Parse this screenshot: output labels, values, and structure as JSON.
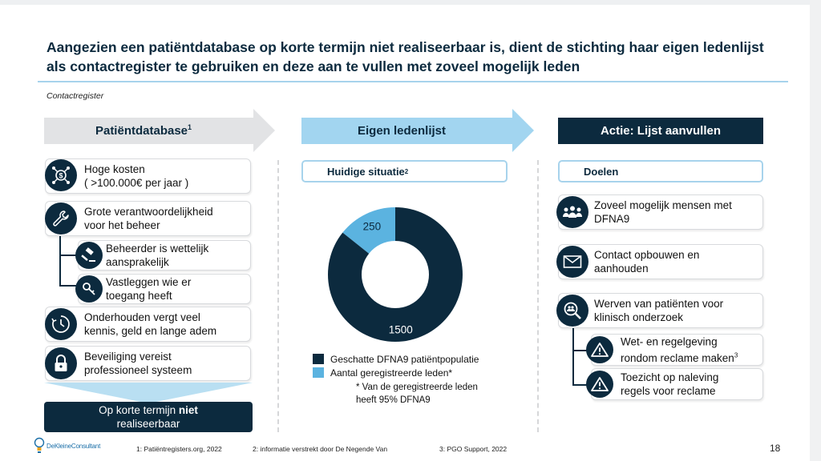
{
  "slide": {
    "title": "Aangezien een patiëntdatabase op korte termijn niet realiseerbaar is, dient de stichting haar eigen ledenlijst als contactregister te gebruiken en deze aan te vullen met zoveel mogelijk leden",
    "subtitle": "Contactregister",
    "page_number": "18"
  },
  "columns": {
    "left": {
      "header": "Patiëntdatabase",
      "header_sup": "1",
      "items": [
        {
          "line1": "Hoge kosten",
          "line2": "( >100.000€ per jaar )",
          "icon": "money-network-icon"
        },
        {
          "line1": "Grote verantwoordelijkheid",
          "line2": "voor het beheer",
          "icon": "wrench-icon"
        },
        {
          "line1": "Beheerder is wettelijk",
          "line2": "aansprakelijk",
          "icon": "gavel-icon"
        },
        {
          "line1": "Vastleggen wie er",
          "line2": "toegang heeft",
          "icon": "key-icon"
        },
        {
          "line1": "Onderhouden vergt veel",
          "line2": "kennis, geld en lange adem",
          "icon": "clock-icon"
        },
        {
          "line1": "Beveiliging vereist",
          "line2": "professioneel systeem",
          "icon": "lock-icon"
        }
      ],
      "conclusion_line1_pre": "Op korte termijn ",
      "conclusion_line1_bold": "niet",
      "conclusion_line2": "realiseerbaar"
    },
    "middle": {
      "header": "Eigen ledenlijst",
      "pill": "Huidige situatie",
      "pill_sup": "2",
      "legend": [
        {
          "label": "Geschatte DFNA9 patiëntpopulatie",
          "color": "#0c2a3e"
        },
        {
          "label": "Aantal geregistreerde leden*",
          "color": "#5bb3e0"
        }
      ],
      "footnote_line1": "* Van de geregistreerde leden",
      "footnote_line2": "heeft 95% DFNA9"
    },
    "right": {
      "header": "Actie: Lijst aanvullen",
      "pill": "Doelen",
      "items": [
        {
          "line1": "Zoveel mogelijk mensen met",
          "line2": "DFNA9",
          "icon": "people-icon"
        },
        {
          "line1": "Contact opbouwen en",
          "line2": "aanhouden",
          "icon": "envelope-icon"
        },
        {
          "line1": "Werven van patiënten voor",
          "line2": "klinisch onderzoek",
          "icon": "magnifier-people-icon"
        },
        {
          "line1": "Wet- en regelgeving",
          "line2": "rondom reclame maken",
          "sup": "3",
          "icon": "warning-icon"
        },
        {
          "line1": "Toezicht op naleving",
          "line2": "regels voor reclame",
          "icon": "warning-icon"
        }
      ]
    }
  },
  "chart_data": {
    "type": "pie",
    "variant": "donut",
    "categories": [
      "Geschatte DFNA9 patiëntpopulatie",
      "Aantal geregistreerde leden*"
    ],
    "values": [
      1500,
      250
    ],
    "labels": [
      "1500",
      "250"
    ],
    "colors": [
      "#0c2a3e",
      "#5bb3e0"
    ],
    "legend_position": "bottom"
  },
  "footer": {
    "note1": "1: Patiëntregisters.org,  2022",
    "note2": "2: informatie verstrekt door De Negende Van",
    "note3": "3: PGO Support,  2022",
    "brand": "DeKleineConsultant"
  }
}
